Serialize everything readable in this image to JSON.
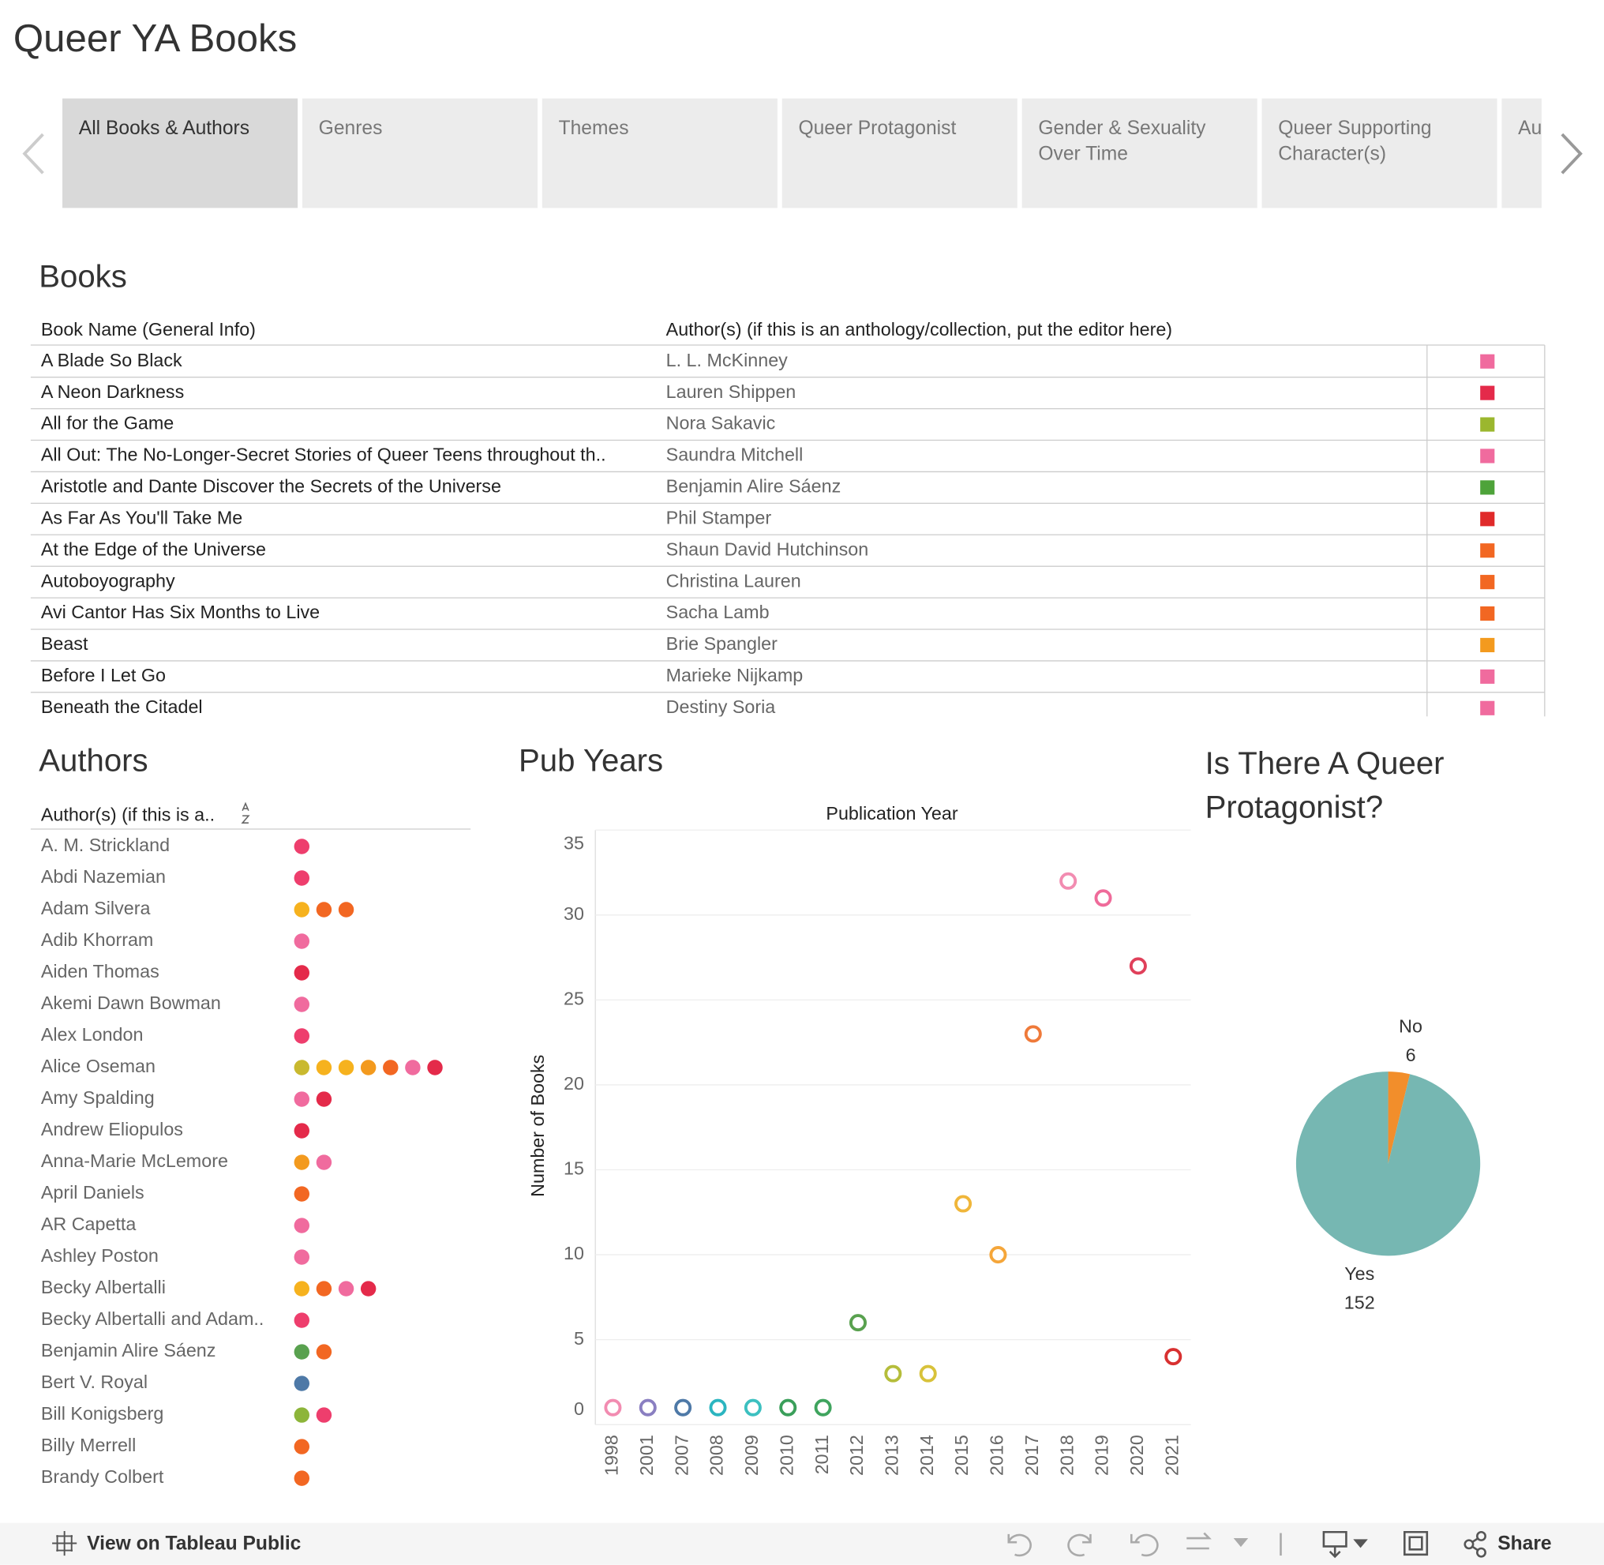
{
  "header": {
    "title": "Queer YA Books"
  },
  "tabs": [
    "All Books & Authors",
    "Genres",
    "Themes",
    "Queer Protagonist",
    "Gender & Sexuality Over Time",
    "Queer Supporting Character(s)",
    "Au"
  ],
  "books": {
    "title": "Books",
    "columns": [
      "Book Name (General Info)",
      "Author(s) (if this is an anthology/collection, put the editor here)"
    ],
    "rows": [
      {
        "name": "A Blade So Black",
        "author": "L. L. McKinney",
        "color": "#f06b9e"
      },
      {
        "name": "A Neon Darkness",
        "author": "Lauren Shippen",
        "color": "#e42a4a"
      },
      {
        "name": "All for the Game",
        "author": "Nora Sakavic",
        "color": "#9bb72e"
      },
      {
        "name": "All Out: The No-Longer-Secret Stories of Queer Teens throughout th..",
        "author": "Saundra Mitchell",
        "color": "#f06b9e"
      },
      {
        "name": "Aristotle and Dante Discover the Secrets of the Universe",
        "author": "Benjamin Alire Sáenz",
        "color": "#4ea33a"
      },
      {
        "name": "As Far As You'll Take Me",
        "author": "Phil Stamper",
        "color": "#e02a2a"
      },
      {
        "name": "At the Edge of the Universe",
        "author": "Shaun David Hutchinson",
        "color": "#f26722"
      },
      {
        "name": "Autoboyography",
        "author": "Christina Lauren",
        "color": "#f26722"
      },
      {
        "name": "Avi Cantor Has Six Months to Live",
        "author": "Sacha Lamb",
        "color": "#f26722"
      },
      {
        "name": "Beast",
        "author": "Brie Spangler",
        "color": "#f39a1e"
      },
      {
        "name": "Before I Let Go",
        "author": "Marieke Nijkamp",
        "color": "#f06b9e"
      },
      {
        "name": "Beneath the Citadel",
        "author": "Destiny Soria",
        "color": "#f06b9e"
      }
    ]
  },
  "authors": {
    "title": "Authors",
    "column": "Author(s) (if this is a..",
    "rows": [
      {
        "name": "A. M. Strickland",
        "colors": [
          "#ee3e6d"
        ]
      },
      {
        "name": "Abdi Nazemian",
        "colors": [
          "#ee3e6d"
        ]
      },
      {
        "name": "Adam Silvera",
        "colors": [
          "#f6b21e",
          "#f26722",
          "#f26722"
        ]
      },
      {
        "name": "Adib Khorram",
        "colors": [
          "#f06b9e"
        ]
      },
      {
        "name": "Aiden Thomas",
        "colors": [
          "#e42a4a"
        ]
      },
      {
        "name": "Akemi Dawn Bowman",
        "colors": [
          "#f06b9e"
        ]
      },
      {
        "name": "Alex London",
        "colors": [
          "#ee3e6d"
        ]
      },
      {
        "name": "Alice Oseman",
        "colors": [
          "#c9b92f",
          "#f6b21e",
          "#f6b21e",
          "#f39a1e",
          "#f26722",
          "#f06b9e",
          "#e42a4a"
        ]
      },
      {
        "name": "Amy Spalding",
        "colors": [
          "#f06b9e",
          "#e42a4a"
        ]
      },
      {
        "name": "Andrew Eliopulos",
        "colors": [
          "#e42a4a"
        ]
      },
      {
        "name": "Anna-Marie McLemore",
        "colors": [
          "#f39a1e",
          "#f06b9e"
        ]
      },
      {
        "name": "April Daniels",
        "colors": [
          "#f26722"
        ]
      },
      {
        "name": "AR Capetta",
        "colors": [
          "#f06b9e"
        ]
      },
      {
        "name": "Ashley Poston",
        "colors": [
          "#f06b9e"
        ]
      },
      {
        "name": "Becky Albertalli",
        "colors": [
          "#f6b21e",
          "#f26722",
          "#f06b9e",
          "#e42a4a"
        ]
      },
      {
        "name": "Becky Albertalli and Adam..",
        "colors": [
          "#ee3e6d"
        ]
      },
      {
        "name": "Benjamin Alire Sáenz",
        "colors": [
          "#59a14f",
          "#f26722"
        ]
      },
      {
        "name": "Bert V. Royal",
        "colors": [
          "#4e79a7"
        ]
      },
      {
        "name": "Bill Konigsberg",
        "colors": [
          "#8db53a",
          "#ee3e6d"
        ]
      },
      {
        "name": "Billy Merrell",
        "colors": [
          "#f26722"
        ]
      },
      {
        "name": "Brandy Colbert",
        "colors": [
          "#f26722"
        ]
      }
    ]
  },
  "pub_years": {
    "type": "scatter",
    "title": "Pub Years",
    "x_title": "Publication Year",
    "y_title": "Number of Books",
    "categories": [
      "1998",
      "2001",
      "2007",
      "2008",
      "2009",
      "2010",
      "2011",
      "2012",
      "2013",
      "2014",
      "2015",
      "2016",
      "2017",
      "2018",
      "2019",
      "2020",
      "2021"
    ],
    "values": [
      1,
      1,
      1,
      1,
      1,
      1,
      1,
      6,
      3,
      3,
      13,
      10,
      23,
      32,
      31,
      27,
      4
    ],
    "colors": [
      "#f28cb1",
      "#8a7fc1",
      "#4e79a7",
      "#2bb5c0",
      "#3cc0c0",
      "#3a9f5a",
      "#3fa45e",
      "#59a14f",
      "#b5bd3a",
      "#d8c23a",
      "#f0b63a",
      "#f5a63a",
      "#ef7a3a",
      "#f28cb1",
      "#ef6b9a",
      "#e0405a",
      "#d83030"
    ],
    "ylim": [
      0,
      35
    ],
    "yticks": [
      0,
      5,
      10,
      15,
      20,
      25,
      30,
      35
    ],
    "grid": true
  },
  "protagonist": {
    "type": "pie",
    "title": "Is There A Queer Protagonist?",
    "categories": [
      "No",
      "Yes"
    ],
    "values": [
      6,
      152
    ],
    "colors": [
      "#f28e2b",
      "#76b7b2"
    ]
  },
  "footer": {
    "link": "View on Tableau Public",
    "share": "Share"
  }
}
